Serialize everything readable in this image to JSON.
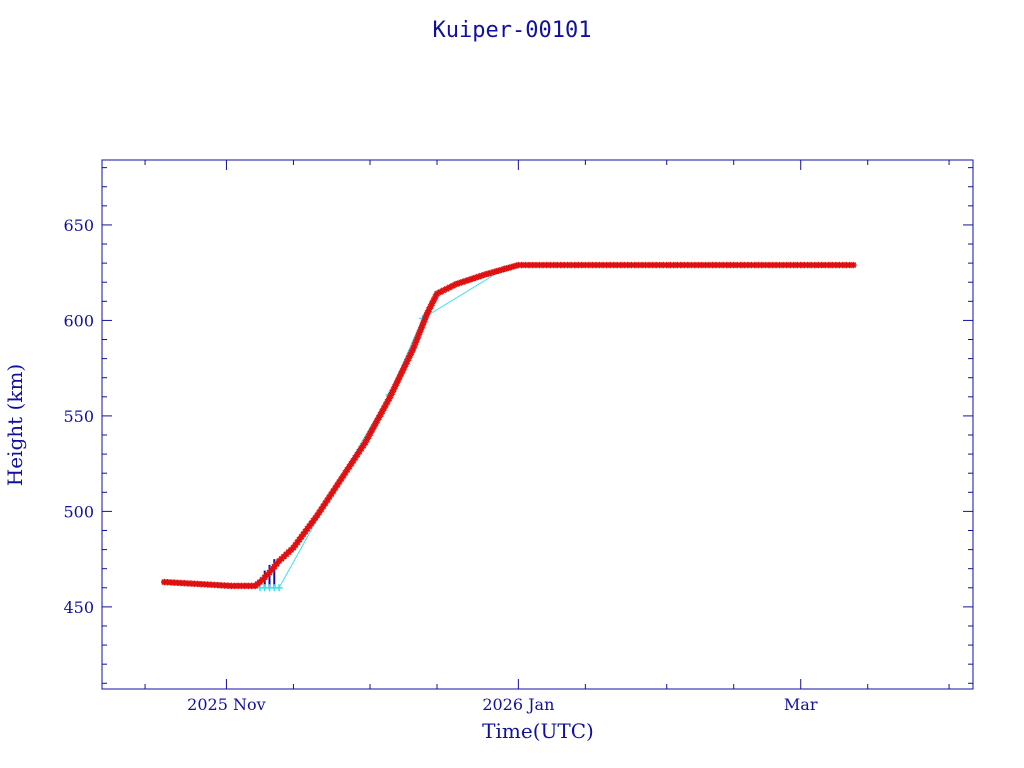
{
  "chart_data": {
    "type": "scatter",
    "title": "Kuiper-00101",
    "xlabel": "Time(UTC)",
    "ylabel": "Height (km)",
    "x_range": [
      "2025-10-06",
      "2026-04-06"
    ],
    "ylim": [
      407,
      684
    ],
    "y_ticks": [
      450,
      500,
      550,
      600,
      650
    ],
    "x_ticks": [
      {
        "date": "2025-11-01",
        "label": "2025 Nov"
      },
      {
        "date": "2026-01-01",
        "label": "2026 Jan"
      },
      {
        "date": "2026-03-01",
        "label": "Mar"
      }
    ],
    "x_minor_ticks": [
      "2025-10-15",
      "2025-11-15",
      "2025-12-01",
      "2025-12-15",
      "2026-01-15",
      "2026-02-01",
      "2026-02-15",
      "2026-03-15",
      "2026-04-01"
    ],
    "grid": false,
    "colors": {
      "axis": "#1010a0",
      "main_series": "#e01010",
      "secondary_series": "#40e0f0",
      "drop_lines": "#1010a0"
    },
    "series": [
      {
        "marker": "star",
        "color": "#e01010",
        "x": [
          "2025-10-19",
          "2025-10-26",
          "2025-11-02",
          "2025-11-07",
          "2025-11-08",
          "2025-11-10",
          "2025-11-12",
          "2025-11-15",
          "2025-11-20",
          "2025-11-25",
          "2025-11-30",
          "2025-12-05",
          "2025-12-10",
          "2025-12-13",
          "2025-12-15",
          "2025-12-19",
          "2025-12-25",
          "2026-01-01",
          "2026-01-15",
          "2026-02-01",
          "2026-02-15",
          "2026-03-01",
          "2026-03-12"
        ],
        "y": [
          463,
          462,
          461,
          461,
          463,
          468,
          474,
          481,
          498,
          517,
          536,
          559,
          585,
          604,
          614,
          619,
          624,
          629,
          629,
          629,
          629,
          629,
          629
        ]
      },
      {
        "marker": "cross",
        "color": "#40e0f0",
        "x": [
          "2025-11-08",
          "2025-11-09",
          "2025-11-10",
          "2025-11-11",
          "2025-11-12",
          "2025-11-22",
          "2025-12-05",
          "2025-12-12",
          "2025-12-29"
        ],
        "y": [
          460,
          460,
          460,
          460,
          460,
          505,
          561,
          601,
          627
        ]
      }
    ],
    "drop_lines": {
      "x": [
        "2025-11-09",
        "2025-11-10",
        "2025-11-11"
      ],
      "y_top": [
        469,
        472,
        475
      ],
      "y_bottom": 460
    }
  }
}
